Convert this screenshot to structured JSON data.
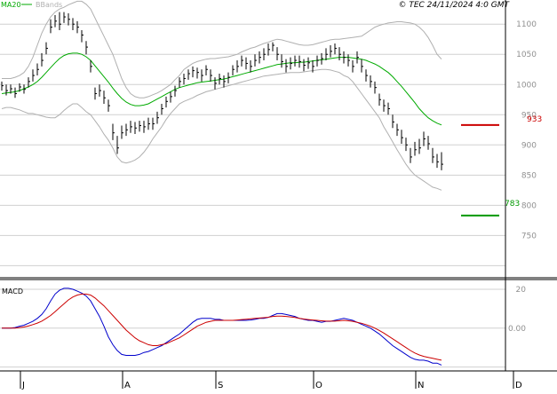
{
  "copyright": "© TEC 24/11/2024 4:0 GMT",
  "legend": {
    "ma_label": "MA20",
    "bb_label": "BBands"
  },
  "macd_label": "MACD",
  "colors": {
    "ma": "#00aa00",
    "bands": "#b0b0b0",
    "price": "#000000",
    "resistance": "#cc0000",
    "support": "#009900",
    "macd": "#0000cc",
    "signal": "#cc0000",
    "grid": "#d0d0d0",
    "axis": "#000000",
    "tick_text": "#909090"
  },
  "chart_data": [
    {
      "type": "candlestick",
      "title": "",
      "xlabel": "",
      "ylabel": "",
      "ylim": [
        680,
        1140
      ],
      "grid": true,
      "x_ticks": [
        {
          "label": "J",
          "index": 0
        },
        {
          "label": "A",
          "index": 23
        },
        {
          "label": "S",
          "index": 44
        },
        {
          "label": "O",
          "index": 66
        },
        {
          "label": "N",
          "index": 89
        },
        {
          "label": "D",
          "index": 111
        }
      ],
      "y_ticks": [
        750,
        800,
        850,
        900,
        950,
        1000,
        1050,
        1100
      ],
      "price_close": [
        998,
        990,
        993,
        985,
        996,
        992,
        1005,
        1015,
        1025,
        1040,
        1060,
        1095,
        1105,
        1100,
        1112,
        1108,
        1100,
        1095,
        1082,
        1062,
        1030,
        985,
        990,
        978,
        965,
        920,
        895,
        920,
        925,
        930,
        928,
        932,
        930,
        935,
        935,
        945,
        960,
        972,
        980,
        990,
        1005,
        1010,
        1018,
        1023,
        1020,
        1015,
        1025,
        1015,
        1002,
        1010,
        1005,
        1012,
        1025,
        1030,
        1040,
        1035,
        1030,
        1040,
        1045,
        1050,
        1058,
        1065,
        1050,
        1038,
        1030,
        1035,
        1040,
        1038,
        1032,
        1036,
        1030,
        1040,
        1043,
        1050,
        1055,
        1060,
        1050,
        1045,
        1040,
        1030,
        1045,
        1030,
        1015,
        1005,
        995,
        975,
        965,
        960,
        938,
        925,
        912,
        900,
        880,
        892,
        895,
        910,
        902,
        880,
        872,
        868
      ],
      "price_high": [
        1005,
        1000,
        1000,
        995,
        1002,
        1000,
        1012,
        1025,
        1035,
        1052,
        1070,
        1108,
        1115,
        1120,
        1120,
        1118,
        1110,
        1105,
        1090,
        1072,
        1040,
        995,
        1000,
        990,
        975,
        935,
        915,
        932,
        935,
        940,
        938,
        940,
        940,
        945,
        945,
        955,
        968,
        980,
        988,
        998,
        1012,
        1018,
        1025,
        1030,
        1028,
        1025,
        1032,
        1025,
        1012,
        1018,
        1015,
        1020,
        1032,
        1040,
        1048,
        1045,
        1040,
        1050,
        1055,
        1060,
        1068,
        1070,
        1062,
        1050,
        1042,
        1045,
        1048,
        1048,
        1042,
        1045,
        1040,
        1048,
        1052,
        1060,
        1065,
        1068,
        1062,
        1055,
        1050,
        1040,
        1055,
        1042,
        1025,
        1015,
        1005,
        985,
        975,
        970,
        950,
        935,
        925,
        912,
        895,
        905,
        910,
        922,
        915,
        895,
        885,
        888
      ],
      "price_low": [
        990,
        982,
        985,
        978,
        988,
        985,
        995,
        1005,
        1015,
        1030,
        1050,
        1085,
        1095,
        1090,
        1102,
        1098,
        1090,
        1085,
        1070,
        1050,
        1020,
        975,
        980,
        968,
        955,
        908,
        885,
        910,
        915,
        920,
        918,
        922,
        920,
        925,
        925,
        935,
        950,
        962,
        970,
        980,
        995,
        1000,
        1008,
        1012,
        1010,
        1005,
        1015,
        1005,
        992,
        1000,
        995,
        1002,
        1015,
        1020,
        1030,
        1025,
        1020,
        1030,
        1035,
        1040,
        1048,
        1055,
        1040,
        1028,
        1020,
        1025,
        1030,
        1028,
        1022,
        1026,
        1020,
        1030,
        1033,
        1040,
        1045,
        1050,
        1040,
        1035,
        1030,
        1020,
        1035,
        1020,
        1005,
        995,
        985,
        965,
        955,
        950,
        928,
        915,
        902,
        890,
        870,
        882,
        885,
        898,
        892,
        870,
        862,
        858
      ],
      "ma20": [
        985,
        986,
        987,
        988,
        990,
        993,
        996,
        1000,
        1005,
        1012,
        1020,
        1028,
        1036,
        1043,
        1048,
        1051,
        1052,
        1052,
        1050,
        1046,
        1040,
        1031,
        1022,
        1013,
        1004,
        994,
        985,
        977,
        971,
        967,
        965,
        965,
        966,
        968,
        972,
        976,
        980,
        984,
        988,
        992,
        995,
        997,
        999,
        1001,
        1003,
        1004,
        1005,
        1006,
        1007,
        1008,
        1009,
        1011,
        1013,
        1015,
        1017,
        1019,
        1021,
        1023,
        1025,
        1027,
        1029,
        1031,
        1033,
        1034,
        1035,
        1036,
        1036,
        1037,
        1037,
        1038,
        1039,
        1040,
        1041,
        1042,
        1043,
        1044,
        1045,
        1045,
        1045,
        1044,
        1043,
        1042,
        1040,
        1037,
        1034,
        1030,
        1025,
        1020,
        1013,
        1005,
        997,
        988,
        979,
        970,
        960,
        952,
        945,
        940,
        936,
        933
      ],
      "bb_upper": [
        1010,
        1010,
        1010,
        1012,
        1015,
        1020,
        1030,
        1045,
        1065,
        1085,
        1100,
        1112,
        1120,
        1125,
        1128,
        1132,
        1135,
        1138,
        1138,
        1133,
        1125,
        1110,
        1095,
        1080,
        1065,
        1050,
        1030,
        1010,
        995,
        985,
        980,
        978,
        978,
        980,
        983,
        986,
        990,
        995,
        1000,
        1008,
        1015,
        1025,
        1030,
        1035,
        1038,
        1040,
        1042,
        1043,
        1043,
        1044,
        1045,
        1046,
        1048,
        1050,
        1054,
        1057,
        1060,
        1062,
        1065,
        1068,
        1070,
        1073,
        1075,
        1074,
        1072,
        1070,
        1068,
        1066,
        1065,
        1065,
        1066,
        1068,
        1070,
        1072,
        1074,
        1075,
        1075,
        1076,
        1077,
        1078,
        1079,
        1080,
        1085,
        1090,
        1095,
        1098,
        1100,
        1102,
        1103,
        1104,
        1104,
        1103,
        1102,
        1100,
        1095,
        1088,
        1078,
        1065,
        1050,
        1042
      ],
      "bb_lower": [
        960,
        962,
        962,
        960,
        958,
        955,
        952,
        952,
        950,
        948,
        946,
        945,
        945,
        950,
        957,
        963,
        968,
        968,
        962,
        955,
        950,
        940,
        930,
        918,
        908,
        895,
        880,
        872,
        870,
        872,
        875,
        880,
        888,
        898,
        910,
        920,
        930,
        942,
        952,
        960,
        968,
        972,
        975,
        978,
        982,
        985,
        988,
        990,
        992,
        994,
        996,
        998,
        1000,
        1002,
        1004,
        1006,
        1008,
        1010,
        1012,
        1014,
        1015,
        1016,
        1017,
        1018,
        1019,
        1020,
        1020,
        1020,
        1021,
        1022,
        1023,
        1024,
        1025,
        1025,
        1024,
        1022,
        1020,
        1015,
        1012,
        1005,
        995,
        985,
        975,
        965,
        955,
        945,
        930,
        918,
        905,
        892,
        880,
        868,
        858,
        850,
        845,
        840,
        835,
        830,
        828,
        825
      ]
    },
    {
      "type": "line",
      "title": "MACD",
      "ylim": [
        -22,
        25
      ],
      "y_ticks": [
        0,
        20
      ],
      "y_tick_labels": [
        "0.00",
        "20"
      ],
      "series": [
        {
          "name": "",
          "values": [
            0,
            0,
            0,
            0.3,
            1,
            1.5,
            2.5,
            3.5,
            5,
            7,
            10,
            14,
            17.5,
            19.5,
            20.5,
            20.5,
            20,
            19,
            18,
            16.5,
            14,
            10,
            6,
            1,
            -4.5,
            -8.5,
            -11.5,
            -13.5,
            -14,
            -14,
            -14,
            -13.5,
            -12.5,
            -12,
            -11,
            -10,
            -9,
            -7.5,
            -6,
            -4.5,
            -3,
            -1,
            1,
            3,
            4.5,
            5,
            5,
            5,
            4.5,
            4.5,
            4,
            4,
            4,
            4,
            4,
            4,
            4.2,
            4.5,
            5,
            5,
            5.5,
            6.5,
            7.5,
            7.5,
            7,
            6.5,
            6,
            5,
            4.5,
            4,
            4,
            3.5,
            3,
            3.5,
            3.5,
            4,
            4.5,
            5,
            4.5,
            4,
            3,
            2,
            1,
            0,
            -1.5,
            -3,
            -5,
            -7,
            -9,
            -10.5,
            -12,
            -13.5,
            -15,
            -16,
            -16.5,
            -16.5,
            -17,
            -18,
            -18,
            -19
          ]
        },
        {
          "name": "",
          "values": [
            0,
            0,
            0,
            0,
            0.3,
            0.6,
            1.1,
            1.8,
            2.6,
            3.6,
            5,
            6.5,
            8.5,
            10.5,
            12.5,
            14.5,
            16,
            17,
            17.5,
            17.5,
            17,
            15.5,
            13.5,
            11.5,
            9,
            6.5,
            4,
            1.5,
            -1,
            -3,
            -5,
            -6.5,
            -7.5,
            -8.5,
            -9,
            -9,
            -8.5,
            -8,
            -7,
            -6,
            -5,
            -3.5,
            -2,
            -0.5,
            1,
            2,
            3,
            3.5,
            4,
            4,
            4,
            4,
            4,
            4.2,
            4.4,
            4.6,
            4.8,
            5,
            5.2,
            5.4,
            5.6,
            6,
            6.2,
            6.2,
            6,
            5.8,
            5.5,
            5,
            4.7,
            4.4,
            4.2,
            4,
            3.8,
            3.6,
            3.6,
            3.6,
            3.8,
            4,
            3.8,
            3.5,
            3,
            2.5,
            1.8,
            1,
            0,
            -1.2,
            -2.5,
            -4,
            -5.5,
            -7,
            -8.5,
            -10,
            -11.5,
            -12.8,
            -13.8,
            -14.5,
            -15,
            -15.5,
            -16,
            -16.5
          ]
        }
      ]
    }
  ],
  "annotations": {
    "resistance": 933,
    "support": 783
  }
}
